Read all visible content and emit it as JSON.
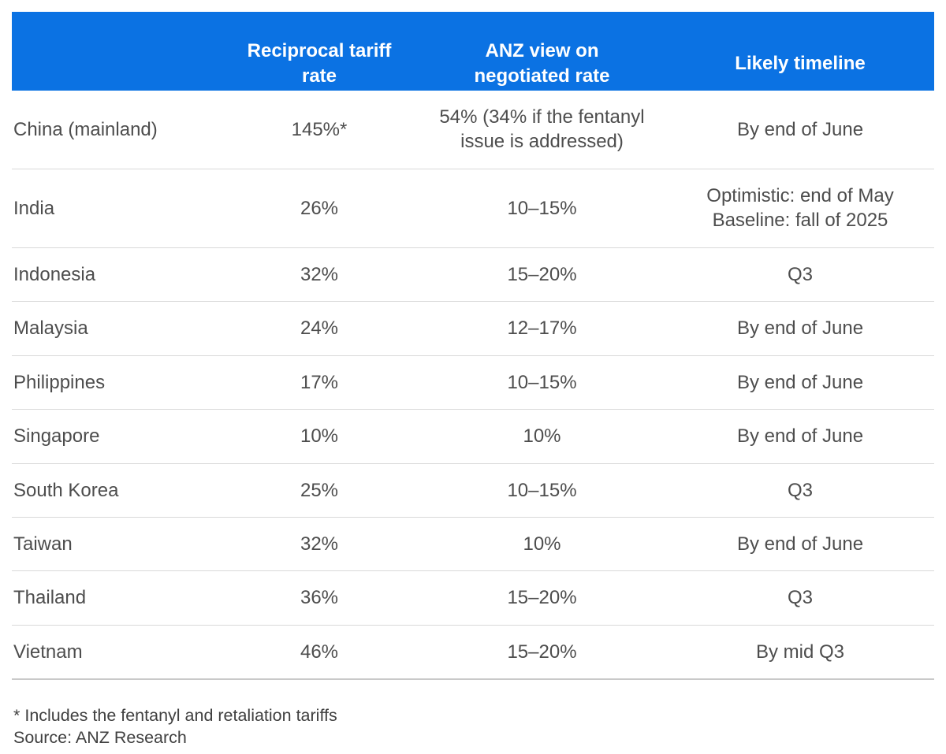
{
  "colors": {
    "header_bg": "#0b72e3",
    "header_text": "#ffffff",
    "body_text": "#4d4d4d",
    "separator": "#d9d9d9"
  },
  "chart_data": {
    "type": "table",
    "columns": [
      "",
      "Reciprocal tariff rate",
      "ANZ view on negotiated rate",
      "Likely timeline"
    ],
    "rows": [
      {
        "country": "China (mainland)",
        "reciprocal_tariff_rate": "145%*",
        "anz_view_negotiated_rate": "54% (34% if the fentanyl\nissue is addressed)",
        "likely_timeline": "By end of June"
      },
      {
        "country": "India",
        "reciprocal_tariff_rate": "26%",
        "anz_view_negotiated_rate": "10–15%",
        "likely_timeline": "Optimistic: end of May\nBaseline: fall of 2025"
      },
      {
        "country": "Indonesia",
        "reciprocal_tariff_rate": "32%",
        "anz_view_negotiated_rate": "15–20%",
        "likely_timeline": "Q3"
      },
      {
        "country": "Malaysia",
        "reciprocal_tariff_rate": "24%",
        "anz_view_negotiated_rate": "12–17%",
        "likely_timeline": "By end of June"
      },
      {
        "country": "Philippines",
        "reciprocal_tariff_rate": "17%",
        "anz_view_negotiated_rate": "10–15%",
        "likely_timeline": "By end of June"
      },
      {
        "country": "Singapore",
        "reciprocal_tariff_rate": "10%",
        "anz_view_negotiated_rate": "10%",
        "likely_timeline": "By end of June"
      },
      {
        "country": "South Korea",
        "reciprocal_tariff_rate": "25%",
        "anz_view_negotiated_rate": "10–15%",
        "likely_timeline": "Q3"
      },
      {
        "country": "Taiwan",
        "reciprocal_tariff_rate": "32%",
        "anz_view_negotiated_rate": "10%",
        "likely_timeline": "By end of June"
      },
      {
        "country": "Thailand",
        "reciprocal_tariff_rate": "36%",
        "anz_view_negotiated_rate": "15–20%",
        "likely_timeline": "Q3"
      },
      {
        "country": "Vietnam",
        "reciprocal_tariff_rate": "46%",
        "anz_view_negotiated_rate": "15–20%",
        "likely_timeline": "By mid Q3"
      }
    ],
    "footnotes": [
      "* Includes the fentanyl and retaliation tariffs",
      "Source: ANZ Research"
    ]
  }
}
